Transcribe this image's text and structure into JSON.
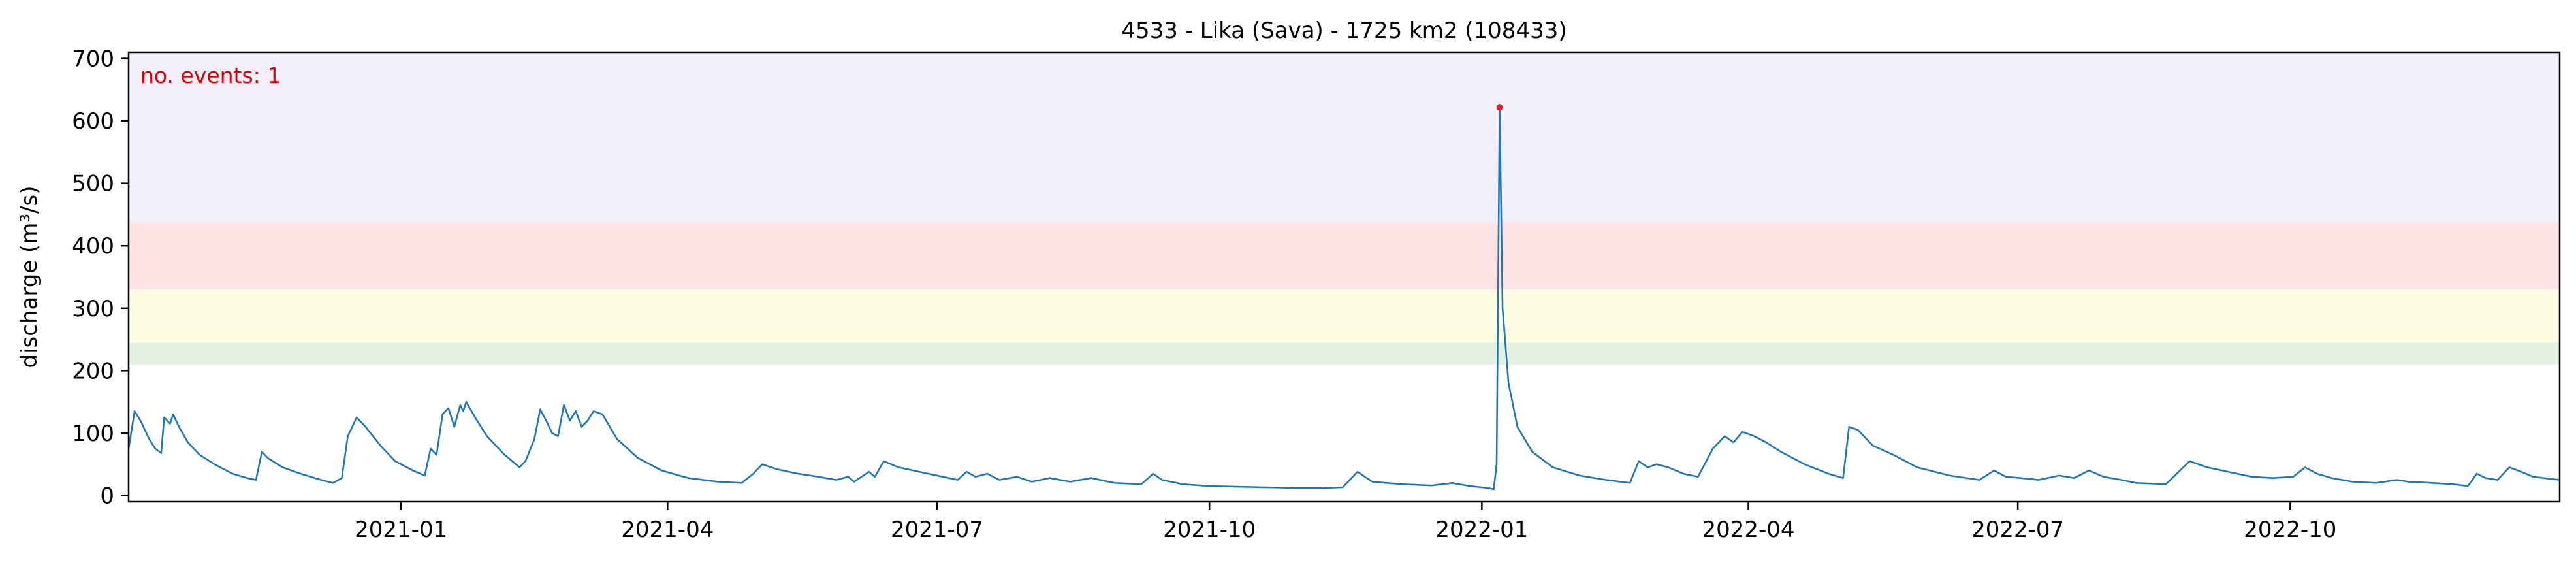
{
  "chart_data": {
    "type": "line",
    "title": "4533 - Lika (Sava) - 1725 km2 (108433)",
    "xlabel": "",
    "ylabel": "discharge (m³/s)",
    "annotation": "no. events: 1",
    "grid": false,
    "legend": "none",
    "xlim": [
      "2020-10-01",
      "2022-12-31"
    ],
    "ylim": [
      -10,
      710
    ],
    "x_ticks": [
      {
        "date": "2021-01-01",
        "label": "2021-01"
      },
      {
        "date": "2021-04-01",
        "label": "2021-04"
      },
      {
        "date": "2021-07-01",
        "label": "2021-07"
      },
      {
        "date": "2021-10-01",
        "label": "2021-10"
      },
      {
        "date": "2022-01-01",
        "label": "2022-01"
      },
      {
        "date": "2022-04-01",
        "label": "2022-04"
      },
      {
        "date": "2022-07-01",
        "label": "2022-07"
      },
      {
        "date": "2022-10-01",
        "label": "2022-10"
      }
    ],
    "y_ticks": [
      0,
      100,
      200,
      300,
      400,
      500,
      600,
      700
    ],
    "threshold_bands": [
      {
        "from": 210,
        "to": 245,
        "color": "#e3f1e3"
      },
      {
        "from": 245,
        "to": 330,
        "color": "#fdfde2"
      },
      {
        "from": 330,
        "to": 438,
        "color": "#fee3e4"
      },
      {
        "from": 438,
        "to": 710,
        "color": "#f2effa"
      }
    ],
    "series": [
      {
        "color": "#1f77b4",
        "points": [
          [
            "2020-10-01",
            75
          ],
          [
            "2020-10-03",
            135
          ],
          [
            "2020-10-05",
            120
          ],
          [
            "2020-10-08",
            90
          ],
          [
            "2020-10-10",
            75
          ],
          [
            "2020-10-12",
            68
          ],
          [
            "2020-10-13",
            125
          ],
          [
            "2020-10-15",
            115
          ],
          [
            "2020-10-16",
            130
          ],
          [
            "2020-10-18",
            110
          ],
          [
            "2020-10-21",
            85
          ],
          [
            "2020-10-25",
            65
          ],
          [
            "2020-10-30",
            50
          ],
          [
            "2020-11-05",
            35
          ],
          [
            "2020-11-10",
            28
          ],
          [
            "2020-11-13",
            25
          ],
          [
            "2020-11-15",
            70
          ],
          [
            "2020-11-17",
            60
          ],
          [
            "2020-11-22",
            45
          ],
          [
            "2020-11-28",
            35
          ],
          [
            "2020-12-05",
            25
          ],
          [
            "2020-12-09",
            20
          ],
          [
            "2020-12-12",
            28
          ],
          [
            "2020-12-14",
            95
          ],
          [
            "2020-12-17",
            125
          ],
          [
            "2020-12-20",
            110
          ],
          [
            "2020-12-25",
            80
          ],
          [
            "2020-12-30",
            55
          ],
          [
            "2021-01-05",
            40
          ],
          [
            "2021-01-09",
            32
          ],
          [
            "2021-01-11",
            75
          ],
          [
            "2021-01-13",
            65
          ],
          [
            "2021-01-15",
            130
          ],
          [
            "2021-01-17",
            140
          ],
          [
            "2021-01-19",
            110
          ],
          [
            "2021-01-21",
            145
          ],
          [
            "2021-01-22",
            135
          ],
          [
            "2021-01-23",
            150
          ],
          [
            "2021-01-26",
            125
          ],
          [
            "2021-01-30",
            95
          ],
          [
            "2021-02-05",
            65
          ],
          [
            "2021-02-10",
            45
          ],
          [
            "2021-02-12",
            55
          ],
          [
            "2021-02-15",
            90
          ],
          [
            "2021-02-17",
            138
          ],
          [
            "2021-02-19",
            120
          ],
          [
            "2021-02-21",
            100
          ],
          [
            "2021-02-23",
            95
          ],
          [
            "2021-02-25",
            145
          ],
          [
            "2021-02-27",
            120
          ],
          [
            "2021-03-01",
            135
          ],
          [
            "2021-03-03",
            110
          ],
          [
            "2021-03-05",
            120
          ],
          [
            "2021-03-07",
            135
          ],
          [
            "2021-03-10",
            130
          ],
          [
            "2021-03-15",
            90
          ],
          [
            "2021-03-22",
            60
          ],
          [
            "2021-03-30",
            40
          ],
          [
            "2021-04-08",
            28
          ],
          [
            "2021-04-18",
            22
          ],
          [
            "2021-04-26",
            20
          ],
          [
            "2021-04-30",
            35
          ],
          [
            "2021-05-03",
            50
          ],
          [
            "2021-05-08",
            42
          ],
          [
            "2021-05-15",
            35
          ],
          [
            "2021-05-22",
            30
          ],
          [
            "2021-05-28",
            25
          ],
          [
            "2021-06-01",
            30
          ],
          [
            "2021-06-03",
            22
          ],
          [
            "2021-06-08",
            38
          ],
          [
            "2021-06-10",
            30
          ],
          [
            "2021-06-13",
            55
          ],
          [
            "2021-06-18",
            45
          ],
          [
            "2021-06-25",
            38
          ],
          [
            "2021-07-03",
            30
          ],
          [
            "2021-07-08",
            25
          ],
          [
            "2021-07-11",
            38
          ],
          [
            "2021-07-14",
            30
          ],
          [
            "2021-07-18",
            35
          ],
          [
            "2021-07-22",
            25
          ],
          [
            "2021-07-28",
            30
          ],
          [
            "2021-08-02",
            22
          ],
          [
            "2021-08-08",
            28
          ],
          [
            "2021-08-15",
            22
          ],
          [
            "2021-08-22",
            28
          ],
          [
            "2021-08-30",
            20
          ],
          [
            "2021-09-08",
            18
          ],
          [
            "2021-09-12",
            35
          ],
          [
            "2021-09-15",
            25
          ],
          [
            "2021-09-22",
            18
          ],
          [
            "2021-10-01",
            15
          ],
          [
            "2021-10-10",
            14
          ],
          [
            "2021-10-20",
            13
          ],
          [
            "2021-10-30",
            12
          ],
          [
            "2021-11-08",
            12
          ],
          [
            "2021-11-15",
            13
          ],
          [
            "2021-11-20",
            38
          ],
          [
            "2021-11-25",
            22
          ],
          [
            "2021-12-05",
            18
          ],
          [
            "2021-12-15",
            16
          ],
          [
            "2021-12-22",
            20
          ],
          [
            "2021-12-28",
            15
          ],
          [
            "2022-01-03",
            12
          ],
          [
            "2022-01-05",
            10
          ],
          [
            "2022-01-06",
            50
          ],
          [
            "2022-01-07",
            622
          ],
          [
            "2022-01-08",
            300
          ],
          [
            "2022-01-10",
            180
          ],
          [
            "2022-01-13",
            110
          ],
          [
            "2022-01-18",
            70
          ],
          [
            "2022-01-25",
            45
          ],
          [
            "2022-02-03",
            32
          ],
          [
            "2022-02-12",
            25
          ],
          [
            "2022-02-20",
            20
          ],
          [
            "2022-02-23",
            55
          ],
          [
            "2022-02-26",
            45
          ],
          [
            "2022-03-01",
            50
          ],
          [
            "2022-03-05",
            45
          ],
          [
            "2022-03-10",
            35
          ],
          [
            "2022-03-15",
            30
          ],
          [
            "2022-03-20",
            75
          ],
          [
            "2022-03-24",
            95
          ],
          [
            "2022-03-27",
            85
          ],
          [
            "2022-03-30",
            102
          ],
          [
            "2022-04-03",
            95
          ],
          [
            "2022-04-07",
            85
          ],
          [
            "2022-04-12",
            70
          ],
          [
            "2022-04-20",
            50
          ],
          [
            "2022-04-28",
            35
          ],
          [
            "2022-05-03",
            28
          ],
          [
            "2022-05-05",
            110
          ],
          [
            "2022-05-08",
            105
          ],
          [
            "2022-05-13",
            80
          ],
          [
            "2022-05-20",
            65
          ],
          [
            "2022-05-28",
            45
          ],
          [
            "2022-06-08",
            32
          ],
          [
            "2022-06-18",
            25
          ],
          [
            "2022-06-23",
            40
          ],
          [
            "2022-06-27",
            30
          ],
          [
            "2022-07-02",
            28
          ],
          [
            "2022-07-08",
            25
          ],
          [
            "2022-07-15",
            32
          ],
          [
            "2022-07-20",
            28
          ],
          [
            "2022-07-25",
            40
          ],
          [
            "2022-07-30",
            30
          ],
          [
            "2022-08-05",
            25
          ],
          [
            "2022-08-10",
            20
          ],
          [
            "2022-08-20",
            18
          ],
          [
            "2022-08-28",
            55
          ],
          [
            "2022-09-03",
            45
          ],
          [
            "2022-09-10",
            38
          ],
          [
            "2022-09-18",
            30
          ],
          [
            "2022-09-25",
            28
          ],
          [
            "2022-10-02",
            30
          ],
          [
            "2022-10-06",
            45
          ],
          [
            "2022-10-10",
            35
          ],
          [
            "2022-10-15",
            28
          ],
          [
            "2022-10-22",
            22
          ],
          [
            "2022-10-30",
            20
          ],
          [
            "2022-11-06",
            25
          ],
          [
            "2022-11-10",
            22
          ],
          [
            "2022-11-18",
            20
          ],
          [
            "2022-11-25",
            18
          ],
          [
            "2022-11-30",
            15
          ],
          [
            "2022-12-03",
            35
          ],
          [
            "2022-12-06",
            28
          ],
          [
            "2022-12-10",
            25
          ],
          [
            "2022-12-14",
            45
          ],
          [
            "2022-12-18",
            38
          ],
          [
            "2022-12-22",
            30
          ],
          [
            "2022-12-31",
            25
          ]
        ]
      }
    ],
    "event_marker": {
      "date": "2022-01-07",
      "value": 622,
      "color": "#d62728"
    }
  }
}
